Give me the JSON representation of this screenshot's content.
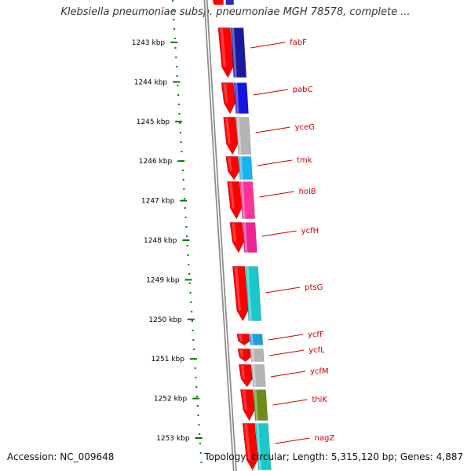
{
  "title": "Klebsiella pneumoniae subsp. pneumoniae MGH 78578, complete ...",
  "accession": "Accession: NC_009648",
  "summary": "Topology: circular; Length: 5,315,120 bp; Genes: 4,887",
  "ruler_labels": [
    "1243 kbp",
    "1244 kbp",
    "1245 kbp",
    "1246 kbp",
    "1247 kbp",
    "1248 kbp",
    "1249 kbp",
    "1250 kbp",
    "1251 kbp",
    "1252 kbp",
    "1253 kbp"
  ],
  "genes": [
    {
      "name": "fabF",
      "color": "#1a1aa0"
    },
    {
      "name": "pabC",
      "color": "#1515e0"
    },
    {
      "name": "yceG",
      "color": "#b4b4b4"
    },
    {
      "name": "tmk",
      "color": "#19b4f0"
    },
    {
      "name": "holB",
      "color": "#ff3399"
    },
    {
      "name": "ycfH",
      "color": "#ee2299"
    },
    {
      "name": "ptsG",
      "color": "#19c8c8"
    },
    {
      "name": "ycfF",
      "color": "#19a0e0"
    },
    {
      "name": "ycfL",
      "color": "#b4b4b4"
    },
    {
      "name": "ycfM",
      "color": "#b4b4b4"
    },
    {
      "name": "thiK",
      "color": "#6e8c19"
    },
    {
      "name": "nagZ",
      "color": "#19c8c8"
    }
  ],
  "colors": {
    "cds_red": "#ff0000",
    "label_red": "#cc0000",
    "ruler_green": "#007700",
    "backbone_gray": "#8c8c8c"
  }
}
